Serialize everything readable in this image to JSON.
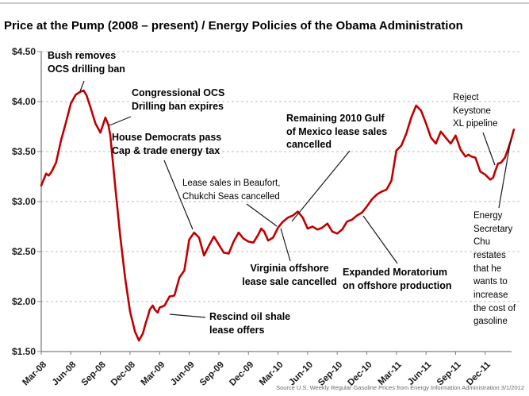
{
  "title": "Price at the Pump (2008 – present) / Energy Policies of the Obama Administration",
  "source_note": "Source U.S. Weekly Regular Gasoline Prices from Energy Information Administration 3/1/2012",
  "colors": {
    "line": "#C00000",
    "grid": "#BFBFBF",
    "axis": "#7F7F7F",
    "tick_text": "#1A1A1A",
    "pointer": "#1A1A1A"
  },
  "chart_data": {
    "type": "line",
    "title": "Price at the Pump (2008 – present) / Energy Policies of the Obama Administration",
    "x_axis": {
      "tick_labels": [
        "Mar-08",
        "Jun-08",
        "Sep-08",
        "Dec-08",
        "Mar-09",
        "Jun-09",
        "Sep-09",
        "Dec-09",
        "Mar-10",
        "Jun-10",
        "Sep-10",
        "Dec-10",
        "Mar-11",
        "Jun-11",
        "Sep-11",
        "Dec-11"
      ],
      "tick_interval_months": 3,
      "data_start": "Mar-08",
      "data_end": "Mar-12",
      "total_months": 48
    },
    "y_axis": {
      "tick_labels": [
        "$4.50",
        "$4.00",
        "$3.50",
        "$3.00",
        "$2.50",
        "$2.00",
        "$1.50"
      ],
      "min": 1.5,
      "max": 4.5,
      "step": 0.5,
      "unit": "dollars per gallon"
    },
    "grid": "horizontal-dashed",
    "legend": "none",
    "series": [
      {
        "name": "U.S. weekly regular gasoline price",
        "points_format": "[months_after_Mar_2008, price_usd_per_gallon]",
        "points": [
          [
            0,
            3.16
          ],
          [
            0.25,
            3.22
          ],
          [
            0.5,
            3.28
          ],
          [
            0.75,
            3.26
          ],
          [
            1,
            3.29
          ],
          [
            1.5,
            3.39
          ],
          [
            2,
            3.61
          ],
          [
            2.5,
            3.79
          ],
          [
            3,
            3.98
          ],
          [
            3.5,
            4.07
          ],
          [
            4,
            4.1
          ],
          [
            4.3,
            4.11
          ],
          [
            4.6,
            4.06
          ],
          [
            5,
            3.94
          ],
          [
            5.5,
            3.78
          ],
          [
            6,
            3.69
          ],
          [
            6.5,
            3.84
          ],
          [
            6.8,
            3.77
          ],
          [
            7,
            3.66
          ],
          [
            7.5,
            3.15
          ],
          [
            8,
            2.66
          ],
          [
            8.5,
            2.24
          ],
          [
            9,
            1.9
          ],
          [
            9.5,
            1.7
          ],
          [
            9.9,
            1.61
          ],
          [
            10.3,
            1.68
          ],
          [
            10.6,
            1.79
          ],
          [
            10.8,
            1.85
          ],
          [
            11,
            1.92
          ],
          [
            11.3,
            1.96
          ],
          [
            11.5,
            1.92
          ],
          [
            11.8,
            1.89
          ],
          [
            12,
            1.94
          ],
          [
            12.5,
            1.96
          ],
          [
            13,
            2.05
          ],
          [
            13.5,
            2.06
          ],
          [
            14,
            2.24
          ],
          [
            14.5,
            2.31
          ],
          [
            15,
            2.62
          ],
          [
            15.5,
            2.69
          ],
          [
            16,
            2.64
          ],
          [
            16.5,
            2.46
          ],
          [
            17,
            2.56
          ],
          [
            17.5,
            2.65
          ],
          [
            18,
            2.57
          ],
          [
            18.5,
            2.49
          ],
          [
            19,
            2.48
          ],
          [
            19.5,
            2.6
          ],
          [
            20,
            2.69
          ],
          [
            20.5,
            2.63
          ],
          [
            21,
            2.6
          ],
          [
            21.5,
            2.59
          ],
          [
            22,
            2.67
          ],
          [
            22.3,
            2.73
          ],
          [
            22.6,
            2.7
          ],
          [
            23,
            2.61
          ],
          [
            23.5,
            2.64
          ],
          [
            24,
            2.74
          ],
          [
            24.5,
            2.8
          ],
          [
            25,
            2.84
          ],
          [
            25.5,
            2.86
          ],
          [
            26,
            2.9
          ],
          [
            26.5,
            2.84
          ],
          [
            27,
            2.73
          ],
          [
            27.5,
            2.75
          ],
          [
            28,
            2.72
          ],
          [
            28.5,
            2.74
          ],
          [
            29,
            2.78
          ],
          [
            29.5,
            2.7
          ],
          [
            30,
            2.68
          ],
          [
            30.5,
            2.72
          ],
          [
            31,
            2.8
          ],
          [
            31.5,
            2.82
          ],
          [
            32,
            2.86
          ],
          [
            32.5,
            2.89
          ],
          [
            33,
            2.95
          ],
          [
            33.5,
            3.02
          ],
          [
            34,
            3.07
          ],
          [
            34.5,
            3.1
          ],
          [
            35,
            3.12
          ],
          [
            35.5,
            3.21
          ],
          [
            36,
            3.51
          ],
          [
            36.5,
            3.56
          ],
          [
            37,
            3.68
          ],
          [
            37.5,
            3.84
          ],
          [
            38,
            3.96
          ],
          [
            38.5,
            3.91
          ],
          [
            39,
            3.78
          ],
          [
            39.5,
            3.64
          ],
          [
            40,
            3.58
          ],
          [
            40.5,
            3.7
          ],
          [
            41,
            3.64
          ],
          [
            41.5,
            3.58
          ],
          [
            42,
            3.66
          ],
          [
            42.5,
            3.52
          ],
          [
            43,
            3.45
          ],
          [
            43.3,
            3.47
          ],
          [
            43.6,
            3.45
          ],
          [
            44,
            3.44
          ],
          [
            44.5,
            3.3
          ],
          [
            45,
            3.27
          ],
          [
            45.5,
            3.22
          ],
          [
            45.8,
            3.24
          ],
          [
            46,
            3.3
          ],
          [
            46.3,
            3.38
          ],
          [
            46.6,
            3.39
          ],
          [
            47,
            3.44
          ],
          [
            47.3,
            3.52
          ],
          [
            47.6,
            3.61
          ],
          [
            47.9,
            3.72
          ]
        ]
      }
    ],
    "annotations": {
      "bush": {
        "text": "Bush removes\nOCS drilling ban",
        "bold": true,
        "pointer": [
          106,
          102,
          101,
          115
        ]
      },
      "congressional": {
        "text": "Congressional OCS\nDrilling ban expires",
        "bold": true,
        "pointer": [
          165,
          147,
          138,
          158
        ]
      },
      "house": {
        "text": "House Democrats pass\nCap & trade energy tax",
        "bold": true,
        "pointer": [
          207,
          202,
          243,
          289
        ]
      },
      "beaufort": {
        "text": "Lease sales in Beaufort,\nChukchi Seas cancelled",
        "bold": false,
        "pointer": [
          311,
          257,
          349,
          285
        ]
      },
      "gulf": {
        "text": "Remaining 2010 Gulf\nof Mexico lease sales\ncancelled",
        "bold": true,
        "pointer": [
          441,
          190,
          368,
          279
        ]
      },
      "virginia": {
        "text": "Virginia offshore\nlease sale cancelled",
        "bold": true,
        "pointer": [
          366,
          329,
          354,
          288
        ]
      },
      "rescind": {
        "text": "Rescind oil shale\nlease offers",
        "bold": true,
        "pointer": [
          259,
          400,
          214,
          396
        ]
      },
      "expanded": {
        "text": "Expanded Moratorium\non offshore production",
        "bold": true,
        "pointer": [
          501,
          332,
          458,
          272
        ]
      },
      "keystone": {
        "text": "Reject\nKeystone\nXL pipeline",
        "bold": false,
        "pointer": [
          609,
          167,
          624,
          208
        ]
      },
      "chu": {
        "text": "Energy\nSecretary\nChu\nrestates\nthat he\nwants to\nincrease\nthe cost of\ngasoline",
        "bold": false,
        "pointer": [
          629,
          262,
          644,
          176
        ]
      }
    }
  }
}
